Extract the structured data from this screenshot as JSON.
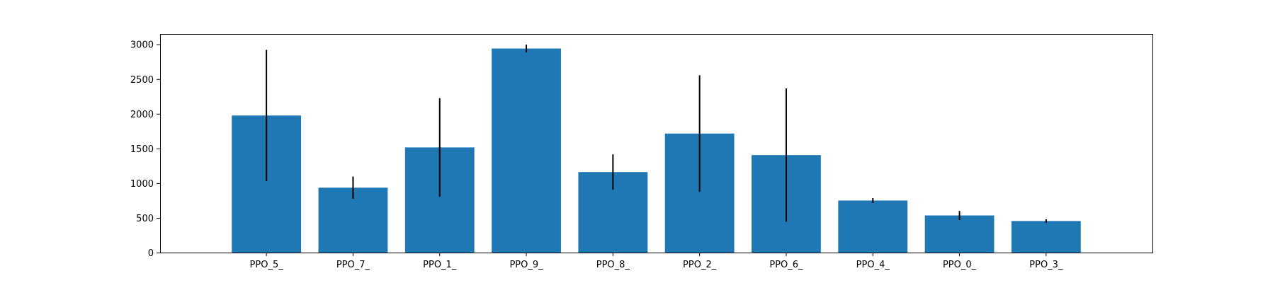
{
  "chart_data": {
    "type": "bar",
    "categories": [
      "PPO_5_",
      "PPO_7_",
      "PPO_1_",
      "PPO_9_",
      "PPO_8_",
      "PPO_2_",
      "PPO_6_",
      "PPO_4_",
      "PPO_0_",
      "PPO_3_"
    ],
    "values": [
      1975,
      935,
      1515,
      2940,
      1160,
      1715,
      1405,
      750,
      535,
      455
    ],
    "errors": [
      945,
      160,
      710,
      55,
      255,
      840,
      960,
      35,
      65,
      25
    ],
    "title": "",
    "xlabel": "",
    "ylabel": "",
    "ylim": [
      0,
      3150
    ],
    "yticks": [
      0,
      500,
      1000,
      1500,
      2000,
      2500,
      3000
    ],
    "ytick_labels": [
      "0",
      "500",
      "1000",
      "1500",
      "2000",
      "2500",
      "3000"
    ],
    "grid": false,
    "legend": "none",
    "colors": {
      "bar": "#1f77b4",
      "error_bar": "#000000",
      "axes": "#000000",
      "background": "#ffffff"
    }
  }
}
